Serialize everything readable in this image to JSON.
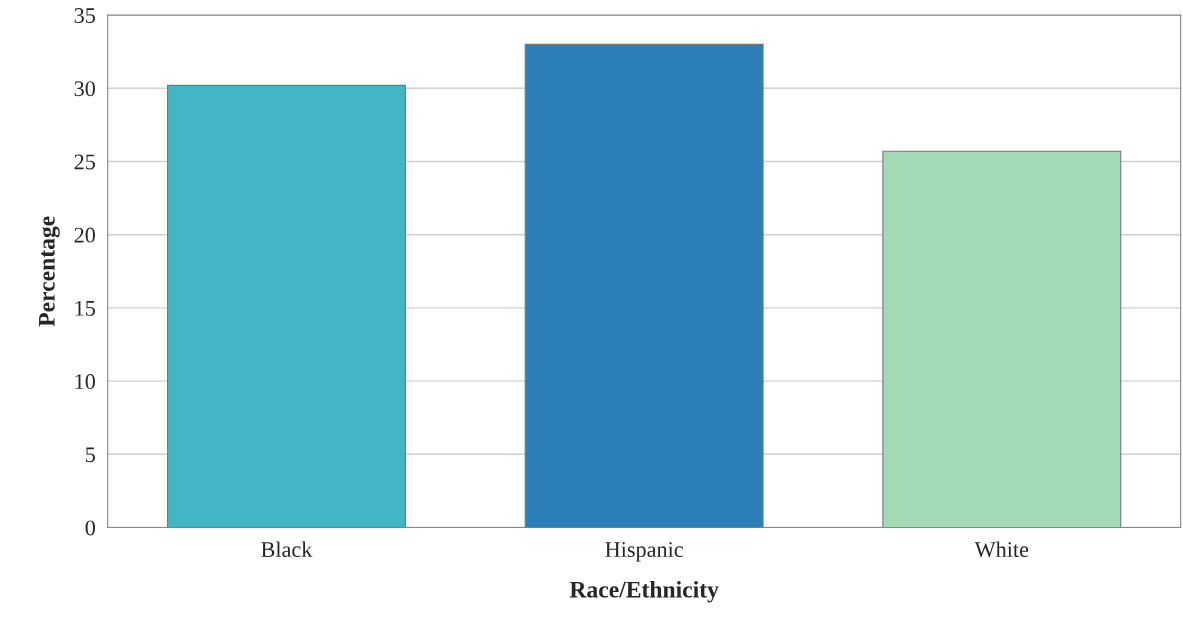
{
  "chart_data": {
    "type": "bar",
    "xlabel": "Race/Ethnicity",
    "ylabel": "Percentage",
    "categories": [
      "Black",
      "Hispanic",
      "White"
    ],
    "values": [
      30.2,
      33.0,
      25.7
    ],
    "colors": [
      "#41b6c4",
      "#2c7fb8",
      "#a1dab4"
    ],
    "ylim": [
      0,
      35
    ],
    "yticks": [
      0,
      5,
      10,
      15,
      20,
      25,
      30,
      35
    ],
    "grid": "y"
  }
}
